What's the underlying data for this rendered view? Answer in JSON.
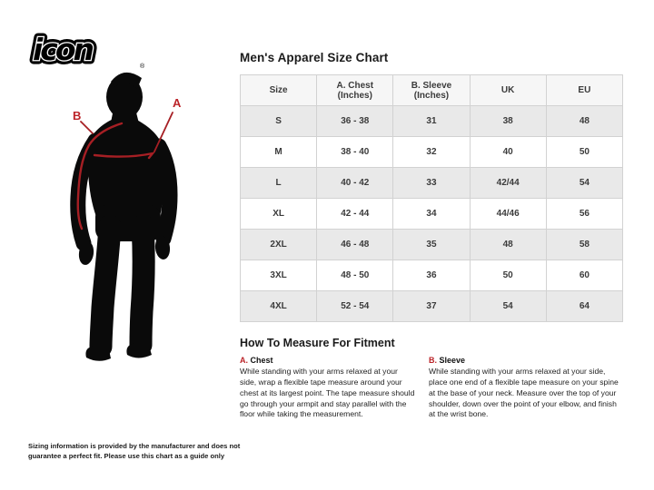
{
  "brand": {
    "logo_text": "icon",
    "registered_mark": "®"
  },
  "figure": {
    "label_a": "A",
    "label_b": "B"
  },
  "size_chart": {
    "title": "Men's Apparel Size Chart",
    "columns": [
      "Size",
      "A. Chest (Inches)",
      "B. Sleeve (Inches)",
      "UK",
      "EU"
    ],
    "rows": [
      [
        "S",
        "36 - 38",
        "31",
        "38",
        "48"
      ],
      [
        "M",
        "38 - 40",
        "32",
        "40",
        "50"
      ],
      [
        "L",
        "40 - 42",
        "33",
        "42/44",
        "54"
      ],
      [
        "XL",
        "42 - 44",
        "34",
        "44/46",
        "56"
      ],
      [
        "2XL",
        "46 - 48",
        "35",
        "48",
        "58"
      ],
      [
        "3XL",
        "48 - 50",
        "36",
        "50",
        "60"
      ],
      [
        "4XL",
        "52 - 54",
        "37",
        "54",
        "64"
      ]
    ]
  },
  "how_to_measure": {
    "title": "How To Measure For Fitment",
    "sections": [
      {
        "label_prefix": "A.",
        "label": "Chest",
        "text": "While standing with your arms relaxed at your side, wrap a flexible tape measure around your chest at its largest point. The tape measure should go through your armpit and stay parallel with the floor while taking the measurement."
      },
      {
        "label_prefix": "B.",
        "label": "Sleeve",
        "text": "While standing with your arms relaxed at your side, place one end of a flexible tape measure on your spine at the base of your neck. Measure over the top of your shoulder, down over the point of your elbow, and finish at the wrist bone."
      }
    ]
  },
  "footnote": "Sizing information is provided by the manufacturer and does not guarantee a perfect fit. Please use this chart as a guide only",
  "colors": {
    "accent_red": "#bb2328",
    "silhouette_black": "#0a0a0a",
    "header_bg": "#f6f6f6",
    "row_alt_bg": "#e9e9e9",
    "table_border": "#d2d2d2"
  }
}
